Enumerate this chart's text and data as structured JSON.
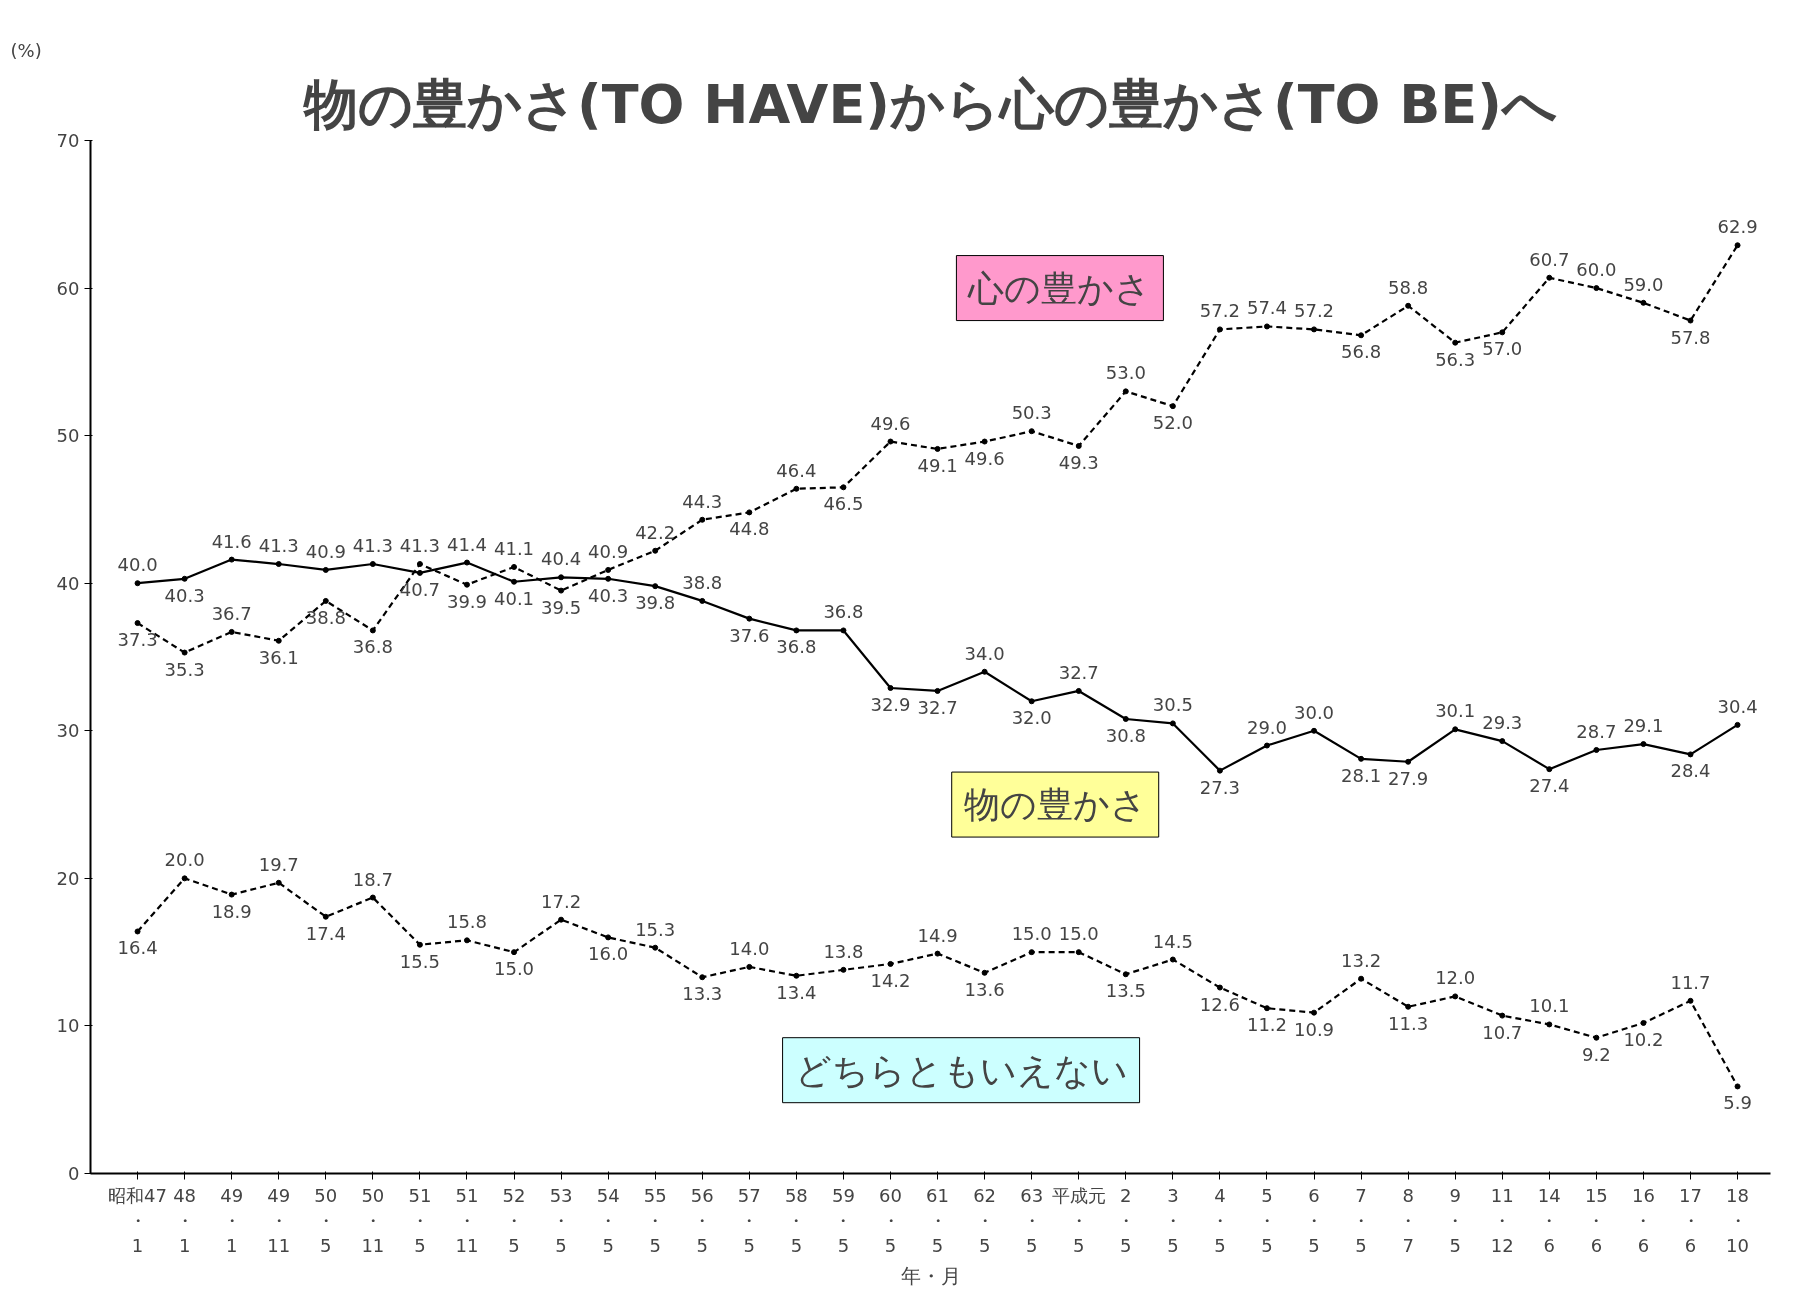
{
  "chart_data": {
    "type": "line",
    "title": "物の豊かさ(TO HAVE)から心の豊かさ(TO BE)へ",
    "xlabel": "年・月",
    "ylabel": "(%)",
    "categories": [
      "昭和47・1",
      "48・1",
      "49・1",
      "49・11",
      "50・5",
      "50・11",
      "51・5",
      "51・11",
      "52・5",
      "53・5",
      "54・5",
      "55・5",
      "56・5",
      "57・5",
      "58・5",
      "59・5",
      "60・5",
      "61・5",
      "62・5",
      "63・5",
      "平成元・5",
      "2・5",
      "3・5",
      "4・5",
      "5・5",
      "6・5",
      "7・5",
      "8・7",
      "9・5",
      "11・12",
      "14・6",
      "15・6",
      "16・6",
      "17・6",
      "18・10"
    ],
    "series": [
      {
        "name": "物の豊かさ",
        "color": "#000000",
        "line_style": "solid",
        "values": [
          40.0,
          40.3,
          41.6,
          41.3,
          40.9,
          41.3,
          40.7,
          41.4,
          40.1,
          40.4,
          40.3,
          39.8,
          38.8,
          37.6,
          36.8,
          36.8,
          32.9,
          32.7,
          34.0,
          32.0,
          32.7,
          30.8,
          30.5,
          27.3,
          29.0,
          30.0,
          28.1,
          27.9,
          30.1,
          29.3,
          27.4,
          28.7,
          29.1,
          28.4,
          30.4
        ],
        "value_labels": [
          "40.0",
          "40.3",
          "41.6",
          "41.3",
          "40.9",
          "41.3",
          "40.7",
          "41.4",
          "40.1",
          "40.4",
          "40.3",
          "39.8",
          "38.8",
          "37.6",
          "36.8",
          "36.8",
          "32.9",
          "32.7",
          "34.0",
          "32.0",
          "32.7",
          "30.8",
          "30.5",
          "27.3",
          "29.0",
          "30.0",
          "28.1",
          "27.9",
          "30.1",
          "29.3",
          "27.4",
          "28.7",
          "29.1",
          "28.4",
          "30.4"
        ]
      },
      {
        "name": "心の豊かさ",
        "color": "#000000",
        "line_style": "dashed",
        "values": [
          37.3,
          35.3,
          36.7,
          36.1,
          38.8,
          36.8,
          41.3,
          39.9,
          41.1,
          39.5,
          40.9,
          42.2,
          44.3,
          44.8,
          46.4,
          46.5,
          49.6,
          49.1,
          49.6,
          50.3,
          49.3,
          53.0,
          52.0,
          57.2,
          57.4,
          57.2,
          56.8,
          58.8,
          56.3,
          57.0,
          60.7,
          60.0,
          59.0,
          57.8,
          62.9
        ],
        "value_labels": [
          "37.3",
          "35.3",
          "36.7",
          "36.1",
          "38.8",
          "36.8",
          "41.3",
          "39.9",
          "41.1",
          "39.5",
          "40.9",
          "42.2",
          "44.3",
          "44.8",
          "46.4",
          "46.5",
          "49.6",
          "49.1",
          "49.6",
          "50.3",
          "49.3",
          "53.0",
          "52.0",
          "57.2",
          "57.4",
          "57.2",
          "56.8",
          "58.8",
          "56.3",
          "57.0",
          "60.7",
          "60.0",
          "59.0",
          "57.8",
          "62.9"
        ]
      },
      {
        "name": "どちらともいえない",
        "color": "#000000",
        "line_style": "dashed",
        "values": [
          16.4,
          20.0,
          18.9,
          19.7,
          17.4,
          18.7,
          15.5,
          15.8,
          15.0,
          17.2,
          16.0,
          15.3,
          13.3,
          14.0,
          13.4,
          13.8,
          14.2,
          14.9,
          13.6,
          15.0,
          15.0,
          13.5,
          14.5,
          12.6,
          11.2,
          10.9,
          13.2,
          11.3,
          12.0,
          10.7,
          10.1,
          9.2,
          10.2,
          11.7,
          5.9
        ],
        "value_labels": [
          "16.4",
          "20.0",
          "18.9",
          "19.7",
          "17.4",
          "18.7",
          "15.5",
          "15.8",
          "15.0",
          "17.2",
          "16.0",
          "15.3",
          "13.3",
          "14.0",
          "13.4",
          "13.8",
          "14.2",
          "14.9",
          "13.6",
          "15.0",
          "15.0",
          "13.5",
          "14.5",
          "12.6",
          "11.2",
          "10.9",
          "13.2",
          "11.3",
          "12.0",
          "10.7",
          "10.1",
          "9.2",
          "10.2",
          "11.7",
          "5.9"
        ]
      }
    ],
    "ylim": [
      0,
      70
    ],
    "yticks": [
      0,
      10,
      20,
      30,
      40,
      50,
      60,
      70
    ],
    "grid": false,
    "marker": "circle"
  }
}
